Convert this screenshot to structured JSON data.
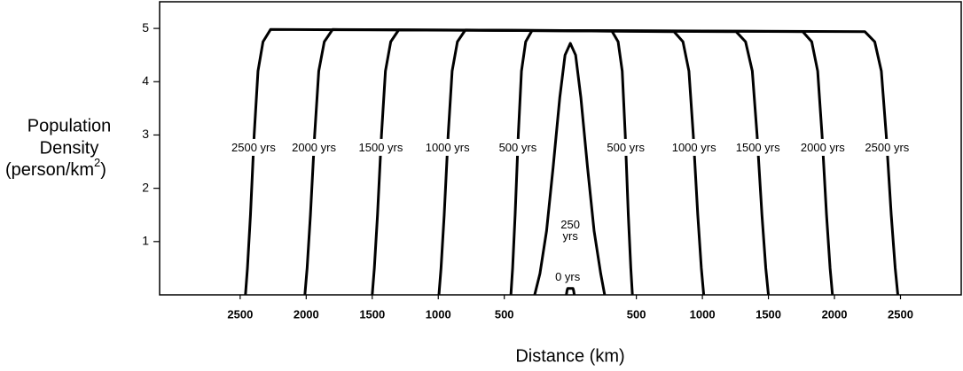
{
  "chart_data": {
    "type": "line",
    "xlabel": "Distance (km)",
    "ylabel": {
      "lines": [
        "Population",
        "Density"
      ],
      "unit": "(person/km",
      "superscript": "2",
      "unit_end": ")"
    },
    "xlim": [
      -3110,
      2960
    ],
    "ylim": [
      0,
      5.5
    ],
    "xticks": [
      {
        "value": -2500,
        "label": "2500"
      },
      {
        "value": -2000,
        "label": "2000"
      },
      {
        "value": -1500,
        "label": "1500"
      },
      {
        "value": -1000,
        "label": "1000"
      },
      {
        "value": -500,
        "label": "500"
      },
      500,
      1000,
      1500,
      2000,
      2500
    ],
    "yticks": [
      1,
      2,
      3,
      4,
      5
    ],
    "color": "#000000",
    "series": [
      {
        "name": "0 yrs",
        "x": [
          -30,
          -25,
          -20,
          20,
          25,
          30
        ],
        "values": [
          0,
          0.08,
          0.12,
          0.12,
          0.08,
          0
        ]
      },
      {
        "name": "250 yrs",
        "x": [
          -270,
          -230,
          -180,
          -130,
          -80,
          -40,
          0,
          40,
          80,
          130,
          180,
          230,
          260
        ],
        "values": [
          0,
          0.4,
          1.2,
          2.4,
          3.7,
          4.5,
          4.72,
          4.5,
          3.7,
          2.4,
          1.2,
          0.4,
          0
        ]
      },
      {
        "name": "500 yrs",
        "x": [
          -450,
          -437,
          -418,
          -394,
          -370,
          -338,
          -290,
          315,
          362,
          393,
          416,
          439,
          458,
          470
        ],
        "values": [
          0,
          0.5,
          1.5,
          3,
          4.2,
          4.75,
          4.96,
          4.95,
          4.75,
          4.2,
          3,
          1.5,
          0.5,
          0
        ]
      },
      {
        "name": "1000 yrs",
        "x": [
          -995,
          -979,
          -955,
          -925,
          -895,
          -855,
          -795,
          785,
          853,
          898,
          931,
          965,
          992,
          1010
        ],
        "values": [
          0,
          0.5,
          1.5,
          3,
          4.2,
          4.75,
          4.97,
          4.94,
          4.75,
          4.2,
          3,
          1.5,
          0.5,
          0
        ]
      },
      {
        "name": "1500 yrs",
        "x": [
          -1500,
          -1484,
          -1460,
          -1430,
          -1400,
          -1360,
          -1300,
          1255,
          1327,
          1378,
          1414,
          1451,
          1480,
          1500
        ],
        "values": [
          0,
          0.5,
          1.5,
          3,
          4.2,
          4.75,
          4.97,
          4.94,
          4.75,
          4.2,
          3,
          1.5,
          0.5,
          0
        ]
      },
      {
        "name": "2000 yrs",
        "x": [
          -2010,
          -1993,
          -1968,
          -1936,
          -1905,
          -1863,
          -1800,
          1760,
          1828,
          1873,
          1906,
          1940,
          1967,
          1985
        ],
        "values": [
          0,
          0.5,
          1.5,
          3,
          4.2,
          4.75,
          4.98,
          4.94,
          4.75,
          4.2,
          3,
          1.5,
          0.5,
          0
        ]
      },
      {
        "name": "2500 yrs",
        "x": [
          -2460,
          -2445,
          -2422,
          -2394,
          -2365,
          -2327,
          -2270,
          2230,
          2305,
          2355,
          2392,
          2430,
          2460,
          2480
        ],
        "values": [
          0,
          0.5,
          1.5,
          3,
          4.2,
          4.75,
          4.98,
          4.94,
          4.75,
          4.2,
          3,
          1.5,
          0.5,
          0
        ]
      }
    ]
  }
}
